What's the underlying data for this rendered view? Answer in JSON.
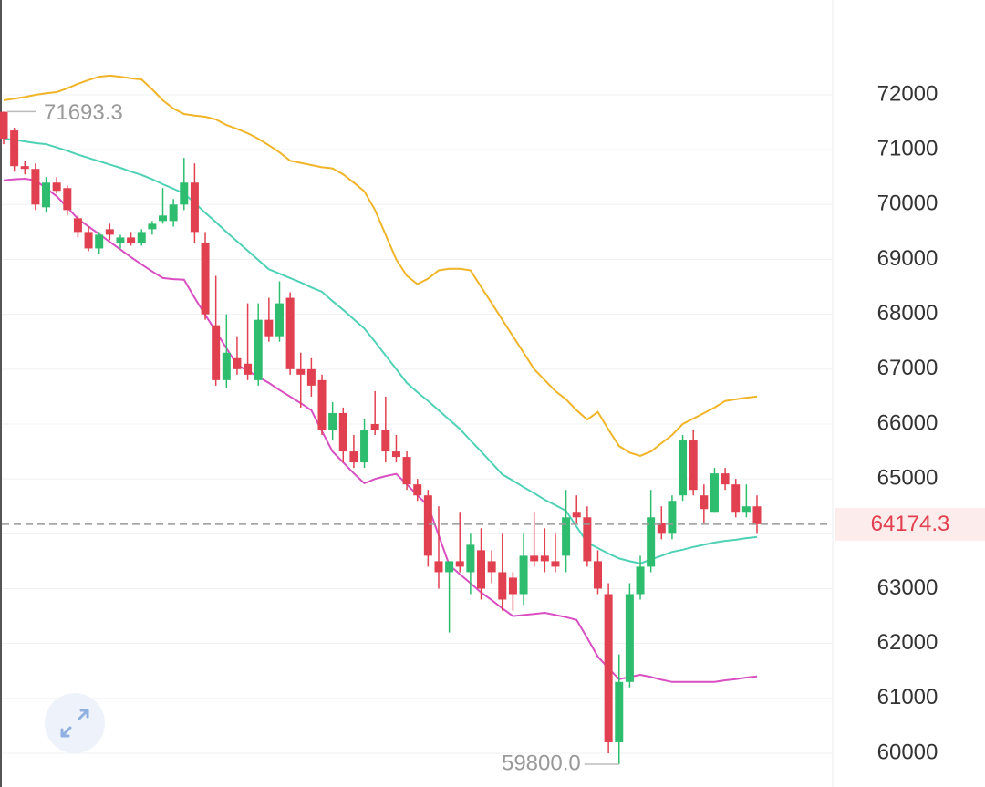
{
  "chart_data": {
    "type": "candlestick",
    "ylim": [
      59385,
      73728
    ],
    "yticks": [
      60000,
      61000,
      62000,
      63000,
      64000,
      65000,
      66000,
      67000,
      68000,
      69000,
      70000,
      71000,
      72000
    ],
    "grid": true,
    "up_color": "#2ebd6e",
    "down_color": "#e0404f",
    "open": [
      71690,
      71350,
      70700,
      70650,
      69950,
      70400,
      70300,
      69750,
      69500,
      69200,
      69550,
      69300,
      69400,
      69300,
      69550,
      69700,
      69700,
      70000,
      70400,
      69300,
      67800,
      66800,
      67200,
      67100,
      66800,
      67900,
      67600,
      68300,
      67000,
      67000,
      66800,
      65900,
      66200,
      65500,
      65300,
      66000,
      65900,
      65500,
      65400,
      64900,
      64700,
      63500,
      63300,
      63500,
      63300,
      63700,
      63500,
      63300,
      63200,
      62900,
      63600,
      63600,
      63500,
      63600,
      64400,
      64300,
      63500,
      62900,
      60200,
      61300,
      62900,
      63400,
      64200,
      64000,
      64700,
      65700,
      64700,
      64400,
      65100,
      64900,
      64400,
      64500
    ],
    "high": [
      71693.3,
      71400,
      70800,
      70750,
      70500,
      70500,
      70350,
      69800,
      69600,
      69500,
      69650,
      69450,
      69500,
      69550,
      69700,
      70300,
      70100,
      70850,
      70750,
      69500,
      68700,
      68000,
      67600,
      68200,
      68200,
      68300,
      68600,
      68400,
      67300,
      67200,
      66900,
      66400,
      66300,
      65800,
      66100,
      66600,
      66500,
      65800,
      65500,
      65000,
      64800,
      64500,
      63500,
      64400,
      64000,
      64100,
      63700,
      64000,
      63300,
      64000,
      64400,
      64100,
      64000,
      64800,
      64700,
      64500,
      63700,
      63100,
      61800,
      63100,
      63600,
      64800,
      64500,
      64700,
      65800,
      65900,
      64900,
      65200,
      65200,
      65000,
      64900,
      64700
    ],
    "low": [
      71100,
      70600,
      70550,
      69900,
      69850,
      70200,
      69800,
      69400,
      69150,
      69100,
      69350,
      69200,
      69250,
      69250,
      69450,
      69650,
      69600,
      69900,
      69300,
      67900,
      66700,
      66650,
      66900,
      66800,
      66700,
      67500,
      67500,
      66900,
      66300,
      66500,
      65800,
      65700,
      65300,
      65200,
      65200,
      65800,
      65300,
      65300,
      64800,
      64600,
      63400,
      63000,
      62200,
      63300,
      62900,
      62800,
      63100,
      62600,
      62600,
      62700,
      63400,
      63300,
      63300,
      63300,
      64200,
      63400,
      62900,
      60000,
      59800,
      61200,
      62800,
      63300,
      63900,
      63900,
      64600,
      64700,
      64200,
      64400,
      64800,
      64300,
      64300,
      64000
    ],
    "close": [
      71200,
      70700,
      70650,
      70000,
      70400,
      70250,
      69900,
      69500,
      69200,
      69450,
      69450,
      69400,
      69300,
      69500,
      69650,
      69800,
      70000,
      70400,
      69500,
      68000,
      66800,
      67300,
      67000,
      66900,
      67900,
      67600,
      68200,
      67000,
      66900,
      66700,
      65900,
      66200,
      65500,
      65300,
      65900,
      65900,
      65500,
      65400,
      64900,
      64700,
      63600,
      63300,
      63500,
      63400,
      63800,
      63000,
      63300,
      62800,
      62900,
      63600,
      63500,
      63500,
      63400,
      64300,
      64300,
      63500,
      63000,
      60200,
      61300,
      62900,
      63400,
      64300,
      64000,
      64600,
      65700,
      64800,
      64450,
      65100,
      64900,
      64400,
      64500,
      64174.3
    ],
    "bands": [
      {
        "color": "#f0b429",
        "values": [
          71900,
          71930,
          71960,
          72000,
          72030,
          72050,
          72120,
          72200,
          72270,
          72330,
          72350,
          72330,
          72300,
          72280,
          72100,
          71900,
          71750,
          71650,
          71620,
          71600,
          71550,
          71450,
          71380,
          71300,
          71200,
          71080,
          70950,
          70800,
          70760,
          70720,
          70680,
          70660,
          70550,
          70400,
          70240,
          69900,
          69450,
          69000,
          68700,
          68550,
          68650,
          68800,
          68830,
          68830,
          68800,
          68500,
          68200,
          67900,
          67600,
          67300,
          67000,
          66800,
          66600,
          66450,
          66250,
          66080,
          66220,
          65900,
          65600,
          65480,
          65420,
          65500,
          65650,
          65800,
          66000,
          66100,
          66200,
          66300,
          66420,
          66450,
          66480,
          66500
        ]
      },
      {
        "color": "#4fd1b5",
        "values": [
          71200,
          71180,
          71150,
          71120,
          71100,
          71040,
          70980,
          70910,
          70850,
          70790,
          70730,
          70670,
          70600,
          70540,
          70460,
          70370,
          70290,
          70200,
          70030,
          69850,
          69680,
          69500,
          69330,
          69160,
          68990,
          68820,
          68740,
          68660,
          68580,
          68490,
          68410,
          68240,
          68080,
          67910,
          67740,
          67500,
          67250,
          67000,
          66750,
          66580,
          66420,
          66250,
          66080,
          65910,
          65700,
          65500,
          65290,
          65080,
          64970,
          64850,
          64740,
          64620,
          64520,
          64420,
          64130,
          63840,
          63740,
          63640,
          63550,
          63500,
          63460,
          63530,
          63600,
          63670,
          63710,
          63760,
          63800,
          63840,
          63870,
          63890,
          63920,
          63940
        ]
      },
      {
        "color": "#d94fc2",
        "values": [
          70440,
          70460,
          70470,
          70440,
          70300,
          70150,
          69950,
          69740,
          69600,
          69460,
          69320,
          69180,
          69040,
          68910,
          68780,
          68660,
          68640,
          68630,
          68300,
          67990,
          67690,
          67380,
          67080,
          66970,
          66860,
          66750,
          66620,
          66500,
          66380,
          66250,
          65870,
          65500,
          65300,
          65100,
          64920,
          65000,
          65050,
          65090,
          64900,
          64700,
          64510,
          63970,
          63430,
          63260,
          63100,
          62930,
          62790,
          62640,
          62500,
          62520,
          62540,
          62560,
          62520,
          62480,
          62430,
          62100,
          61760,
          61550,
          61350,
          61390,
          61430,
          61390,
          61340,
          61300,
          61300,
          61300,
          61300,
          61300,
          61330,
          61350,
          61380,
          61400
        ]
      }
    ],
    "annotations": [
      {
        "value": 71693.3,
        "label": "71693.3"
      },
      {
        "value": 59800,
        "label": "59800.0"
      }
    ],
    "last_price": {
      "value": 64174.3,
      "label": "64174.3",
      "color": "#e0404f"
    }
  }
}
